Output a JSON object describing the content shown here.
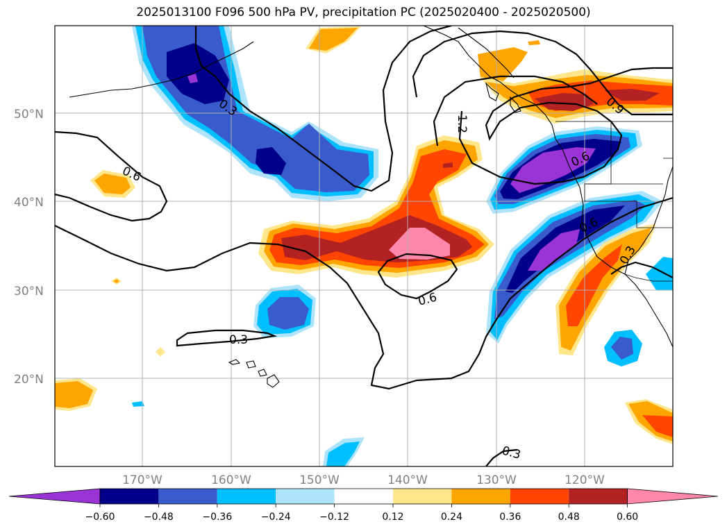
{
  "title": "2025013100 F096 500 hPa PV, precipitation PC (2025020400 - 2025020500)",
  "map": {
    "extent": {
      "lon": [
        -180,
        -110
      ],
      "lat": [
        10,
        60
      ]
    },
    "lat_labels": [
      "50°N",
      "40°N",
      "30°N",
      "20°N"
    ],
    "lon_labels": [
      "170°W",
      "160°W",
      "150°W",
      "140°W",
      "130°W",
      "120°W"
    ],
    "contour_labels": [
      "0.3",
      "0.6",
      "1.2",
      "0.6",
      "0.9",
      "0.6",
      "0.3",
      "0.3",
      "0.6",
      "0.3",
      "0.3"
    ]
  },
  "colorbar": {
    "ticks": [
      "−0.60",
      "−0.48",
      "−0.36",
      "−0.24",
      "−0.12",
      "0.12",
      "0.24",
      "0.36",
      "0.48",
      "0.60"
    ],
    "colors": [
      "#9a34d6",
      "#00008b",
      "#3a5bcc",
      "#00bfff",
      "#aee4fb",
      "#ffffff",
      "#ffe68a",
      "#ffa500",
      "#ff4500",
      "#b22222",
      "#ff88aa"
    ]
  },
  "legend_colors": {
    "purple": "#9a34d6",
    "navy": "#00008b",
    "royal": "#3a5bcc",
    "sky": "#00bfff",
    "pale": "#aee4fb",
    "yellow": "#ffe68a",
    "orange": "#ffa500",
    "redorange": "#ff4500",
    "firebrick": "#b22222",
    "pink": "#ff88aa"
  }
}
